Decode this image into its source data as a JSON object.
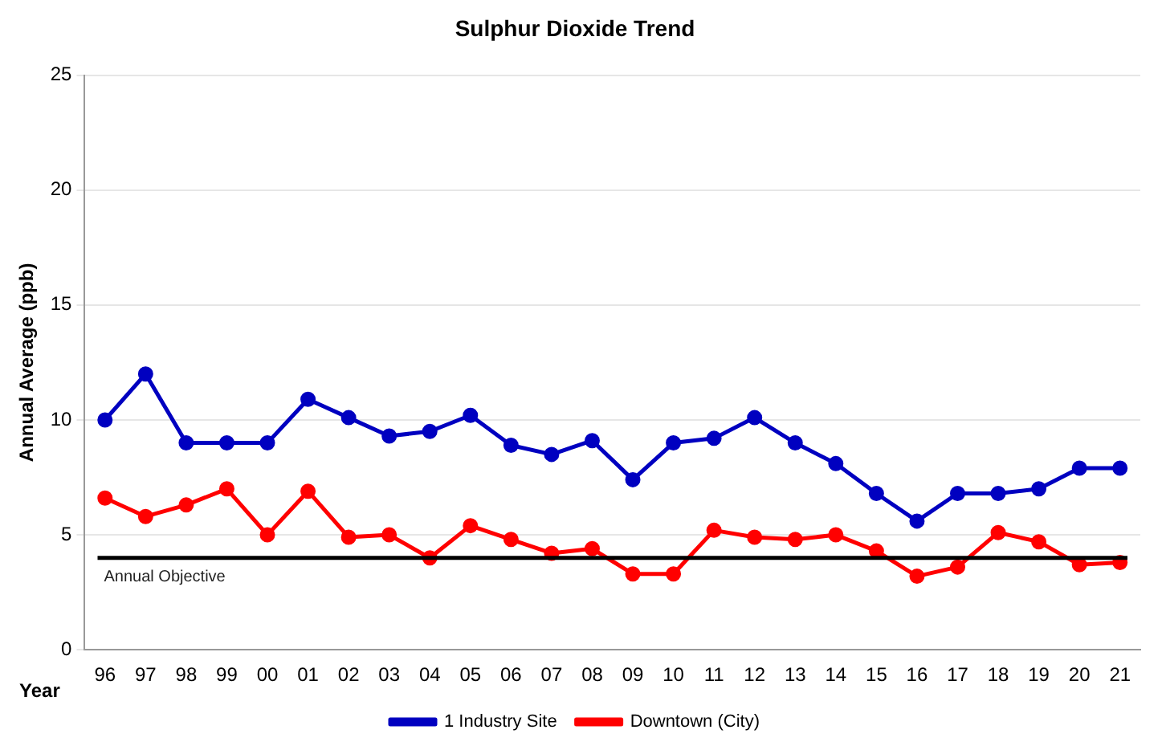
{
  "chart_data": {
    "type": "line",
    "title": "Sulphur Dioxide Trend",
    "xlabel": "Year",
    "ylabel": "Annual Average (ppb)",
    "categories": [
      "96",
      "97",
      "98",
      "99",
      "00",
      "01",
      "02",
      "03",
      "04",
      "05",
      "06",
      "07",
      "08",
      "09",
      "10",
      "11",
      "12",
      "13",
      "14",
      "15",
      "16",
      "17",
      "18",
      "19",
      "20",
      "21"
    ],
    "series": [
      {
        "name": "1 Industry Site",
        "color": "#0000c0",
        "values": [
          10,
          12,
          9,
          9,
          9,
          10.9,
          10.1,
          9.3,
          9.5,
          10.2,
          8.9,
          8.5,
          9.1,
          7.4,
          9,
          9.2,
          10.1,
          9,
          8.1,
          6.8,
          5.6,
          6.8,
          6.8,
          7,
          7.9,
          7.9
        ]
      },
      {
        "name": "Downtown (City)",
        "color": "#ff0000",
        "values": [
          6.6,
          5.8,
          6.3,
          7,
          5,
          6.9,
          4.9,
          5,
          4,
          5.4,
          4.8,
          4.2,
          4.4,
          3.3,
          3.3,
          5.2,
          4.9,
          4.8,
          5,
          4.3,
          3.2,
          3.6,
          5.1,
          4.7,
          3.7,
          3.8
        ]
      }
    ],
    "ylim": [
      0,
      25
    ],
    "yticks": [
      0,
      5,
      10,
      15,
      20,
      25
    ],
    "grid": "y",
    "legend": "bottom",
    "marker": "circle",
    "line_style": "solid",
    "ref_lines": [
      {
        "axis": "y",
        "value": 4,
        "label": "Annual Objective",
        "color": "#000000"
      }
    ]
  }
}
